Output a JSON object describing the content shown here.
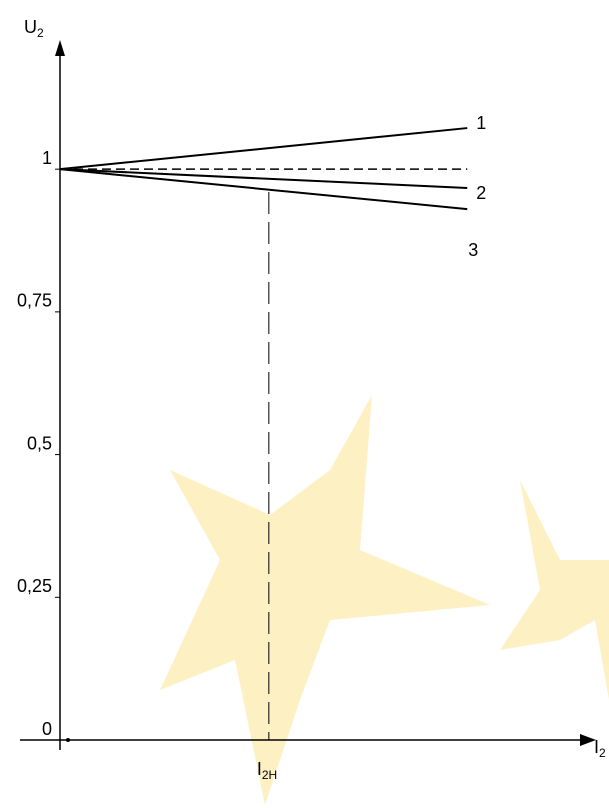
{
  "chart_data": {
    "type": "line",
    "y_label": "U",
    "y_label_sub": "2",
    "x_label": "I",
    "x_label_sub": "2",
    "xlim": [
      0,
      2.6
    ],
    "xticks": [
      {
        "value": 1,
        "label": "I",
        "sub": "2H"
      }
    ],
    "ylim": [
      0,
      1.2
    ],
    "yticks": [
      0,
      {
        "value": 0.25,
        "label": "0,25"
      },
      {
        "value": 0.5,
        "label": "0,5"
      },
      {
        "value": 0.75,
        "label": "0,75"
      },
      1
    ],
    "reference_value": 1,
    "x": [
      0,
      1.95
    ],
    "series": [
      {
        "name": "1",
        "color": "#000000",
        "values": [
          1,
          1.072
        ]
      },
      {
        "name": "2",
        "color": "#000000",
        "values": [
          1,
          0.967
        ]
      },
      {
        "name": "3",
        "color": "#000000",
        "values": [
          1,
          0.93
        ]
      }
    ]
  }
}
